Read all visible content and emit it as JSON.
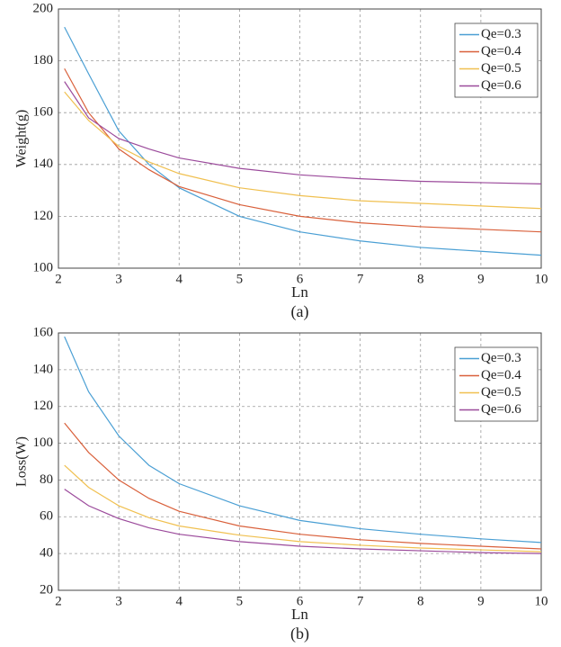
{
  "chart_data": [
    {
      "type": "line",
      "xlabel": "Ln",
      "ylabel": "Weight(g)",
      "caption": "(a)",
      "x": [
        2.1,
        2.5,
        3,
        3.5,
        4,
        5,
        6,
        7,
        8,
        9,
        10
      ],
      "series": [
        {
          "name": "Qe=0.3",
          "color": "#4a9fd4",
          "values": [
            193,
            175,
            153,
            140,
            131,
            120,
            114,
            110.5,
            108,
            106.5,
            105
          ]
        },
        {
          "name": "Qe=0.4",
          "color": "#d9603b",
          "values": [
            177,
            160,
            146,
            138,
            131.5,
            124.5,
            120,
            117.5,
            116,
            115,
            114
          ]
        },
        {
          "name": "Qe=0.5",
          "color": "#f0c050",
          "values": [
            168,
            157,
            147,
            141,
            136.5,
            131,
            128,
            126,
            125,
            124,
            123
          ]
        },
        {
          "name": "Qe=0.6",
          "color": "#9b4a9b",
          "values": [
            172,
            158,
            150,
            146,
            142.5,
            138.5,
            136,
            134.5,
            133.5,
            133,
            132.5
          ]
        }
      ],
      "xlim": [
        2,
        10
      ],
      "ylim": [
        100,
        200
      ],
      "xticks": [
        2,
        3,
        4,
        5,
        6,
        7,
        8,
        9,
        10
      ],
      "yticks": [
        100,
        120,
        140,
        160,
        180,
        200
      ],
      "grid": true,
      "legend": "upper right"
    },
    {
      "type": "line",
      "xlabel": "Ln",
      "ylabel": "Loss(W)",
      "caption": "(b)",
      "x": [
        2.1,
        2.5,
        3,
        3.5,
        4,
        5,
        6,
        7,
        8,
        9,
        10
      ],
      "series": [
        {
          "name": "Qe=0.3",
          "color": "#4a9fd4",
          "values": [
            158,
            128,
            104,
            88,
            78,
            66,
            58,
            53.5,
            50.5,
            48,
            46
          ]
        },
        {
          "name": "Qe=0.4",
          "color": "#d9603b",
          "values": [
            111,
            95,
            80,
            70,
            63,
            55,
            50.5,
            47.5,
            45.5,
            44,
            42.5
          ]
        },
        {
          "name": "Qe=0.5",
          "color": "#f0c050",
          "values": [
            88,
            76,
            66,
            59.5,
            55,
            50,
            46.5,
            44.5,
            43,
            42,
            41
          ]
        },
        {
          "name": "Qe=0.6",
          "color": "#9b4a9b",
          "values": [
            75,
            66,
            59,
            54,
            50.5,
            46.5,
            44,
            42.5,
            41.5,
            40.5,
            40
          ]
        }
      ],
      "xlim": [
        2,
        10
      ],
      "ylim": [
        20,
        160
      ],
      "xticks": [
        2,
        3,
        4,
        5,
        6,
        7,
        8,
        9,
        10
      ],
      "yticks": [
        20,
        40,
        60,
        80,
        100,
        120,
        140,
        160
      ],
      "grid": true,
      "legend": "upper right"
    }
  ]
}
